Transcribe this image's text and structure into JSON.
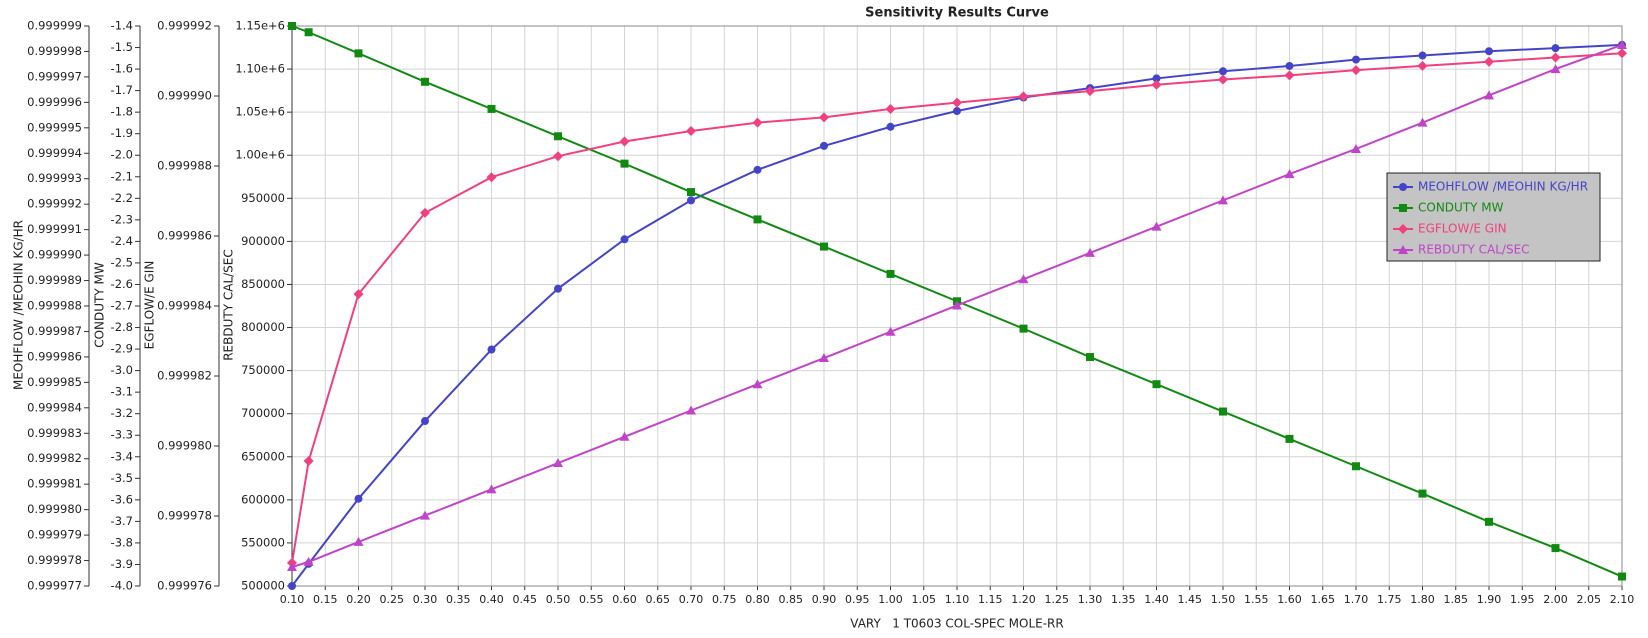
{
  "chart_data": {
    "type": "line",
    "title": "Sensitivity Results Curve",
    "x_label": "VARY   1 T0603 COL-SPEC MOLE-RR",
    "xlim": [
      0.1,
      2.1
    ],
    "xticks": [
      {
        "value": 0.1,
        "label": "0.10"
      },
      0.15,
      {
        "value": 0.2,
        "label": "0.20"
      },
      0.25,
      {
        "value": 0.3,
        "label": "0.30"
      },
      0.35,
      {
        "value": 0.4,
        "label": "0.40"
      },
      0.45,
      {
        "value": 0.5,
        "label": "0.50"
      },
      0.55,
      {
        "value": 0.6,
        "label": "0.60"
      },
      0.65,
      {
        "value": 0.7,
        "label": "0.70"
      },
      0.75,
      {
        "value": 0.8,
        "label": "0.80"
      },
      0.85,
      {
        "value": 0.9,
        "label": "0.90"
      },
      0.95,
      {
        "value": 1.0,
        "label": "1.00"
      },
      1.05,
      {
        "value": 1.1,
        "label": "1.10"
      },
      1.15,
      {
        "value": 1.2,
        "label": "1.20"
      },
      1.25,
      {
        "value": 1.3,
        "label": "1.30"
      },
      1.35,
      {
        "value": 1.4,
        "label": "1.40"
      },
      1.45,
      {
        "value": 1.5,
        "label": "1.50"
      },
      1.55,
      {
        "value": 1.6,
        "label": "1.60"
      },
      1.65,
      {
        "value": 1.7,
        "label": "1.70"
      },
      1.75,
      {
        "value": 1.8,
        "label": "1.80"
      },
      1.85,
      {
        "value": 1.9,
        "label": "1.90"
      },
      1.95,
      {
        "value": 2.0,
        "label": "2.00"
      },
      2.05,
      {
        "value": 2.1,
        "label": "2.10"
      }
    ],
    "grid": true,
    "legend": "upper right",
    "y_axes": [
      {
        "label": "MEOHFLOW /MEOHIN KG/HR",
        "ylim": [
          0.999977,
          0.999999
        ],
        "yticks": [
          0.999977,
          0.999978,
          0.999979,
          {
            "value": 0.99998,
            "label": "0.999980"
          },
          0.999981,
          0.999982,
          0.999983,
          0.999984,
          0.999985,
          0.999986,
          0.999987,
          0.999988,
          0.999989,
          {
            "value": 0.99999,
            "label": "0.999990"
          },
          0.999991,
          0.999992,
          0.999993,
          0.999994,
          0.999995,
          0.999996,
          0.999997,
          0.999998,
          0.999999
        ]
      },
      {
        "label": "CONDUTY MW",
        "ylim": [
          -4.0,
          -1.4
        ],
        "yticks": [
          {
            "value": -4,
            "label": "-4.0"
          },
          -3.9,
          -3.8,
          -3.7,
          -3.6,
          -3.5,
          -3.4,
          -3.3,
          -3.2,
          -3.1,
          {
            "value": -3,
            "label": "-3.0"
          },
          -2.9,
          -2.8,
          -2.7,
          -2.6,
          -2.5,
          -2.4,
          -2.3,
          -2.2,
          -2.1,
          {
            "value": -2,
            "label": "-2.0"
          },
          -1.9,
          -1.8,
          -1.7,
          -1.6,
          -1.5,
          -1.4
        ]
      },
      {
        "label": "EGFLOW/E GIN",
        "ylim": [
          0.999976,
          0.999992
        ],
        "yticks": [
          0.999976,
          0.999978,
          {
            "value": 0.99998,
            "label": "0.999980"
          },
          0.999982,
          0.999984,
          0.999986,
          0.999988,
          {
            "value": 0.99999,
            "label": "0.999990"
          },
          0.999992
        ]
      },
      {
        "label": "REBDUTY CAL/SEC",
        "ylim": [
          500000,
          1150000
        ],
        "yticks": [
          500000,
          550000,
          600000,
          650000,
          700000,
          750000,
          800000,
          850000,
          900000,
          950000,
          {
            "value": 1000000,
            "label": "1.00e+6"
          },
          {
            "value": 1050000,
            "label": "1.05e+6"
          },
          {
            "value": 1100000,
            "label": "1.10e+6"
          },
          {
            "value": 1150000,
            "label": "1.15e+6"
          }
        ]
      }
    ],
    "x": [
      0.1,
      0.125,
      0.2,
      0.3,
      0.4,
      0.5,
      0.6,
      0.7,
      0.8,
      0.9,
      1.0,
      1.1,
      1.2,
      1.3,
      1.4,
      1.5,
      1.6,
      1.7,
      1.8,
      1.9,
      2.0,
      2.1
    ],
    "series": [
      {
        "name": "MEOHFLOW /MEOHIN KG/HR",
        "color": "#4444c8",
        "marker": "circle",
        "axis": 0,
        "values": [
          0.999977,
          0.99997787,
          0.99998043,
          0.99998348,
          0.99998629,
          0.99998868,
          0.99999062,
          0.99999215,
          0.99999335,
          0.99999429,
          0.99999504,
          0.99999566,
          0.99999619,
          0.99999656,
          0.99999694,
          0.99999722,
          0.99999743,
          0.99999768,
          0.99999784,
          0.99999801,
          0.99999813,
          0.99999826
        ]
      },
      {
        "name": "CONDUTY MW",
        "color": "#128a12",
        "marker": "square",
        "axis": 1,
        "values": [
          -1.4,
          -1.429,
          -1.527,
          -1.659,
          -1.785,
          -1.912,
          -2.039,
          -2.171,
          -2.298,
          -2.424,
          -2.551,
          -2.678,
          -2.805,
          -2.937,
          -3.063,
          -3.19,
          -3.317,
          -3.444,
          -3.571,
          -3.702,
          -3.824,
          -3.956
        ]
      },
      {
        "name": "EGFLOW/E GIN",
        "color": "#f0407f",
        "marker": "diamond",
        "axis": 2,
        "values": [
          0.99997666,
          0.99997957,
          0.99998434,
          0.99998666,
          0.99998768,
          0.99998828,
          0.9999887,
          0.999989,
          0.99998924,
          0.99998939,
          0.99998963,
          0.99998981,
          0.99998999,
          0.99999014,
          0.99999032,
          0.99999047,
          0.99999059,
          0.99999074,
          0.99999086,
          0.99999098,
          0.9999911,
          0.99999122
        ]
      },
      {
        "name": "REBDUTY CAL/SEC",
        "color": "#c044c8",
        "marker": "triangle",
        "axis": 3,
        "values": [
          522000,
          528000,
          551200,
          581700,
          612200,
          642700,
          673200,
          703700,
          734200,
          764600,
          795100,
          825600,
          856100,
          886600,
          917100,
          947600,
          978100,
          1007300,
          1037800,
          1069500,
          1100000,
          1128000
        ]
      }
    ]
  }
}
